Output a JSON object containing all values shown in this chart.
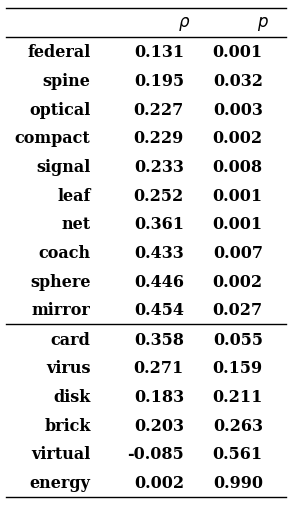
{
  "header": [
    "ρ",
    "p"
  ],
  "section1": [
    [
      "federal",
      "0.131",
      "0.001"
    ],
    [
      "spine",
      "0.195",
      "0.032"
    ],
    [
      "optical",
      "0.227",
      "0.003"
    ],
    [
      "compact",
      "0.229",
      "0.002"
    ],
    [
      "signal",
      "0.233",
      "0.008"
    ],
    [
      "leaf",
      "0.252",
      "0.001"
    ],
    [
      "net",
      "0.361",
      "0.001"
    ],
    [
      "coach",
      "0.433",
      "0.007"
    ],
    [
      "sphere",
      "0.446",
      "0.002"
    ],
    [
      "mirror",
      "0.454",
      "0.027"
    ]
  ],
  "section2": [
    [
      "card",
      "0.358",
      "0.055"
    ],
    [
      "virus",
      "0.271",
      "0.159"
    ],
    [
      "disk",
      "0.183",
      "0.211"
    ],
    [
      "brick",
      "0.203",
      "0.263"
    ],
    [
      "virtual",
      "-0.085",
      "0.561"
    ],
    [
      "energy",
      "0.002",
      "0.990"
    ]
  ],
  "bg_color": "#ffffff",
  "text_color": "#000000",
  "fontsize": 11.5,
  "header_fontsize": 12
}
